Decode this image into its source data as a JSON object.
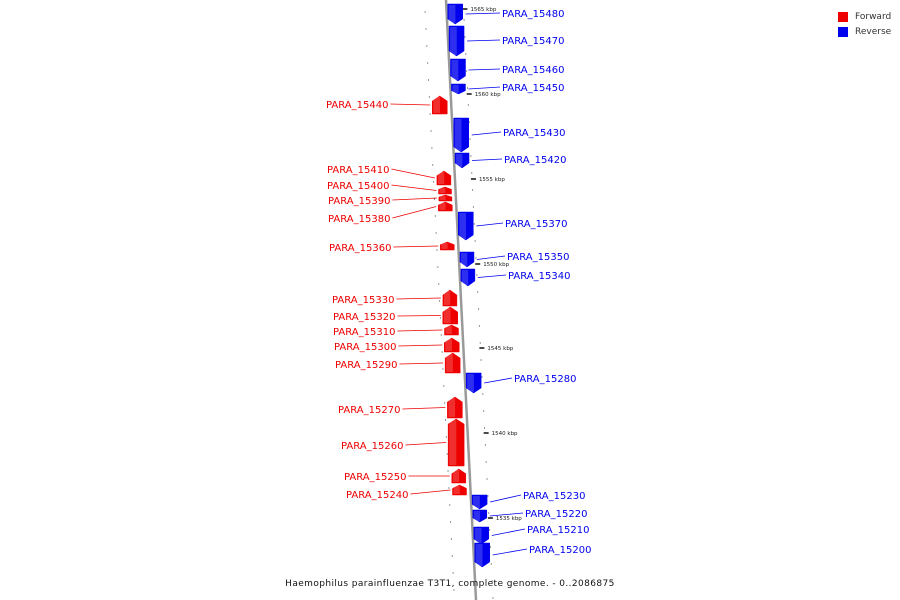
{
  "legend": [
    {
      "label": "Forward",
      "color": "#ee0000"
    },
    {
      "label": "Reverse",
      "color": "#0000ee"
    }
  ],
  "caption": "Haemophilus parainfluenzae T3T1, complete genome. - 0..2086875",
  "colors": {
    "forward": "#ee0000",
    "reverse": "#0000ee",
    "axis": "#999999",
    "ticks": "#333333"
  },
  "kbp_ticks": [
    "1565 kbp",
    "1560 kbp",
    "1555 kbp",
    "1550 kbp",
    "1545 kbp",
    "1540 kbp",
    "1535 kbp"
  ],
  "genes": [
    {
      "id": "PARA_15480",
      "strand": "reverse"
    },
    {
      "id": "PARA_15470",
      "strand": "reverse"
    },
    {
      "id": "PARA_15460",
      "strand": "reverse"
    },
    {
      "id": "PARA_15450",
      "strand": "reverse"
    },
    {
      "id": "PARA_15440",
      "strand": "forward"
    },
    {
      "id": "PARA_15430",
      "strand": "reverse"
    },
    {
      "id": "PARA_15420",
      "strand": "reverse"
    },
    {
      "id": "PARA_15410",
      "strand": "forward"
    },
    {
      "id": "PARA_15400",
      "strand": "forward"
    },
    {
      "id": "PARA_15390",
      "strand": "forward"
    },
    {
      "id": "PARA_15380",
      "strand": "forward"
    },
    {
      "id": "PARA_15370",
      "strand": "reverse"
    },
    {
      "id": "PARA_15360",
      "strand": "forward"
    },
    {
      "id": "PARA_15350",
      "strand": "reverse"
    },
    {
      "id": "PARA_15340",
      "strand": "reverse"
    },
    {
      "id": "PARA_15330",
      "strand": "forward"
    },
    {
      "id": "PARA_15320",
      "strand": "forward"
    },
    {
      "id": "PARA_15310",
      "strand": "forward"
    },
    {
      "id": "PARA_15300",
      "strand": "forward"
    },
    {
      "id": "PARA_15290",
      "strand": "forward"
    },
    {
      "id": "PARA_15280",
      "strand": "reverse"
    },
    {
      "id": "PARA_15270",
      "strand": "forward"
    },
    {
      "id": "PARA_15260",
      "strand": "forward"
    },
    {
      "id": "PARA_15250",
      "strand": "forward"
    },
    {
      "id": "PARA_15240",
      "strand": "forward"
    },
    {
      "id": "PARA_15230",
      "strand": "reverse"
    },
    {
      "id": "PARA_15220",
      "strand": "reverse"
    },
    {
      "id": "PARA_15210",
      "strand": "reverse"
    },
    {
      "id": "PARA_15200",
      "strand": "reverse"
    }
  ]
}
